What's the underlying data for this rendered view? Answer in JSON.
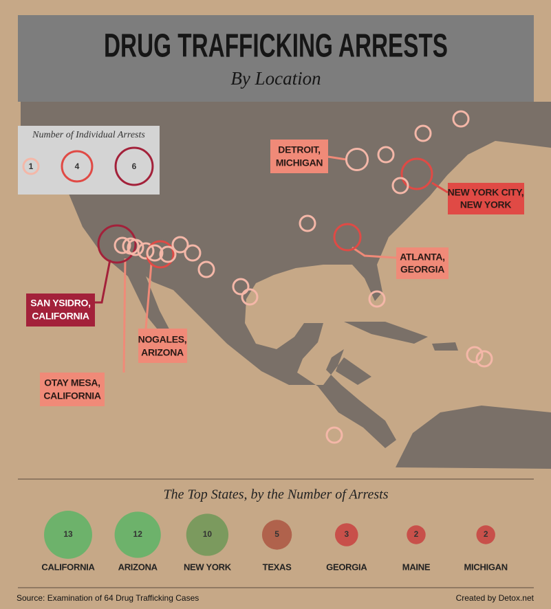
{
  "header": {
    "title": "DRUG TRAFFICKING ARRESTS",
    "subtitle": "By Location"
  },
  "legend": {
    "title": "Number of Individual Arrests",
    "entries": [
      1,
      4,
      6
    ],
    "colors": [
      "#f4b7a8",
      "#e04a45",
      "#a3213a"
    ]
  },
  "markers": [
    1,
    1,
    1,
    2,
    4,
    1,
    1,
    3,
    6,
    1,
    1,
    1,
    1,
    3,
    1,
    1,
    1,
    1,
    1,
    1,
    1,
    1,
    1,
    1,
    1
  ],
  "callouts": [
    {
      "lines": [
        "DETROIT,",
        "MICHIGAN"
      ]
    },
    {
      "lines": [
        "NEW YORK CITY,",
        "NEW YORK"
      ]
    },
    {
      "lines": [
        "ATLANTA,",
        "GEORGIA"
      ]
    },
    {
      "lines": [
        "SAN YSIDRO,",
        "CALIFORNIA"
      ]
    },
    {
      "lines": [
        "NOGALES,",
        "ARIZONA"
      ]
    },
    {
      "lines": [
        "OTAY MESA,",
        "CALIFORNIA"
      ]
    }
  ],
  "top_states": {
    "title": "The Top States, by the Number of Arrests",
    "states": [
      {
        "name": "CALIFORNIA",
        "value": 13,
        "color": "#6db26b"
      },
      {
        "name": "ARIZONA",
        "value": 12,
        "color": "#6db26b"
      },
      {
        "name": "NEW YORK",
        "value": 10,
        "color": "#7b9a5e"
      },
      {
        "name": "TEXAS",
        "value": 5,
        "color": "#b0624c"
      },
      {
        "name": "GEORGIA",
        "value": 3,
        "color": "#c8504a"
      },
      {
        "name": "MAINE",
        "value": 2,
        "color": "#c8504a"
      },
      {
        "name": "MICHIGAN",
        "value": 2,
        "color": "#c8504a"
      }
    ]
  },
  "footer": {
    "source": "Source: Examination of 64 Drug Trafficking Cases",
    "credit": "Created by Detox.net"
  }
}
